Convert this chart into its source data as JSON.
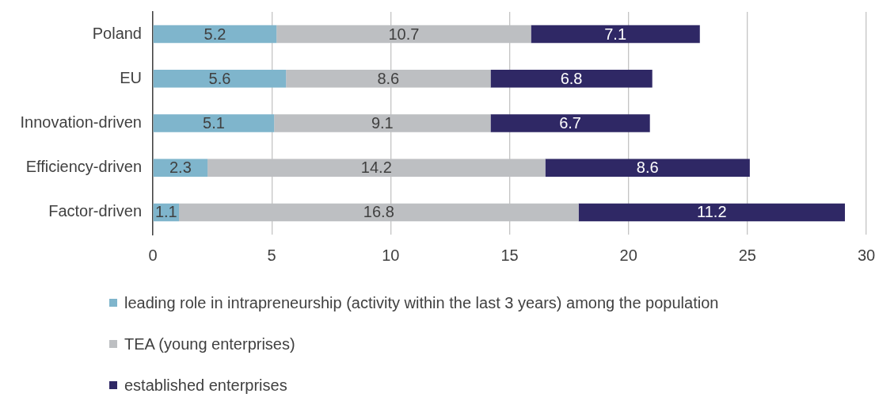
{
  "chart_data": {
    "type": "bar",
    "orientation": "horizontal",
    "stacked": true,
    "categories": [
      "Poland",
      "EU",
      "Innovation-driven",
      "Efficiency-driven",
      "Factor-driven"
    ],
    "series": [
      {
        "name": "leading role in intrapreneurship (activity within the last 3 years) among the population",
        "color": "#7fb5cc",
        "values": [
          5.2,
          5.6,
          5.1,
          2.3,
          1.1
        ]
      },
      {
        "name": "TEA (young enterprises)",
        "color": "#bdbfc2",
        "values": [
          10.7,
          8.6,
          9.1,
          14.2,
          16.8
        ]
      },
      {
        "name": "established enterprises",
        "color": "#2f2865",
        "values": [
          7.1,
          6.8,
          6.7,
          8.6,
          11.2
        ]
      }
    ],
    "xlim": [
      0,
      30
    ],
    "xticks": [
      0,
      5,
      10,
      15,
      20,
      25,
      30
    ],
    "grid": "x",
    "legend": "bottom",
    "data_labels": true
  }
}
